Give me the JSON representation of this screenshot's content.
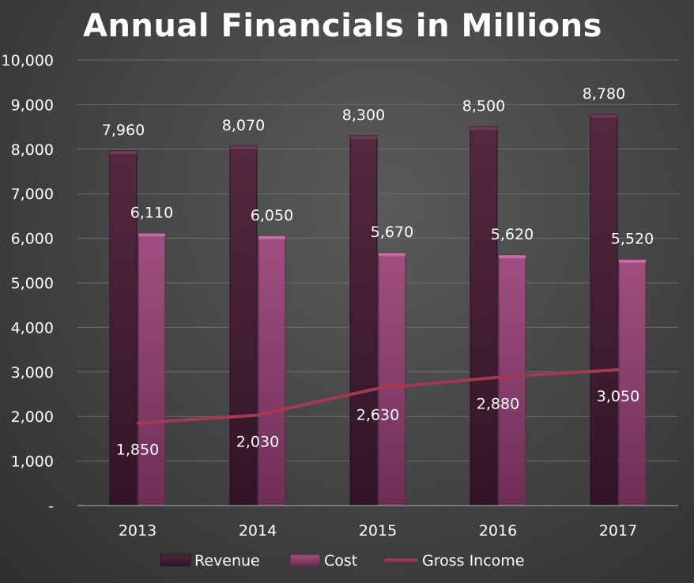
{
  "chart_data": {
    "type": "bar",
    "title": "Annual Financials in Millions",
    "categories": [
      "2013",
      "2014",
      "2015",
      "2016",
      "2017"
    ],
    "series": [
      {
        "name": "Revenue",
        "type": "bar",
        "values": [
          7960,
          8070,
          8300,
          8500,
          8780
        ],
        "labels": [
          "7,960",
          "8,070",
          "8,300",
          "8,500",
          "8,780"
        ],
        "color": "#4a2238"
      },
      {
        "name": "Cost",
        "type": "bar",
        "values": [
          6110,
          6050,
          5670,
          5620,
          5520
        ],
        "labels": [
          "6,110",
          "6,050",
          "5,670",
          "5,620",
          "5,520"
        ],
        "color": "#8e4170"
      },
      {
        "name": "Gross Income",
        "type": "line",
        "values": [
          1850,
          2030,
          2630,
          2880,
          3050
        ],
        "labels": [
          "1,850",
          "2,030",
          "2,630",
          "2,880",
          "3,050"
        ],
        "color": "#a33a52"
      }
    ],
    "ylim": [
      0,
      10000
    ],
    "yticks": [
      "-",
      "1,000",
      "2,000",
      "3,000",
      "4,000",
      "5,000",
      "6,000",
      "7,000",
      "8,000",
      "9,000",
      "10,000"
    ],
    "grid": true,
    "legend_position": "bottom",
    "xlabel": "",
    "ylabel": ""
  }
}
